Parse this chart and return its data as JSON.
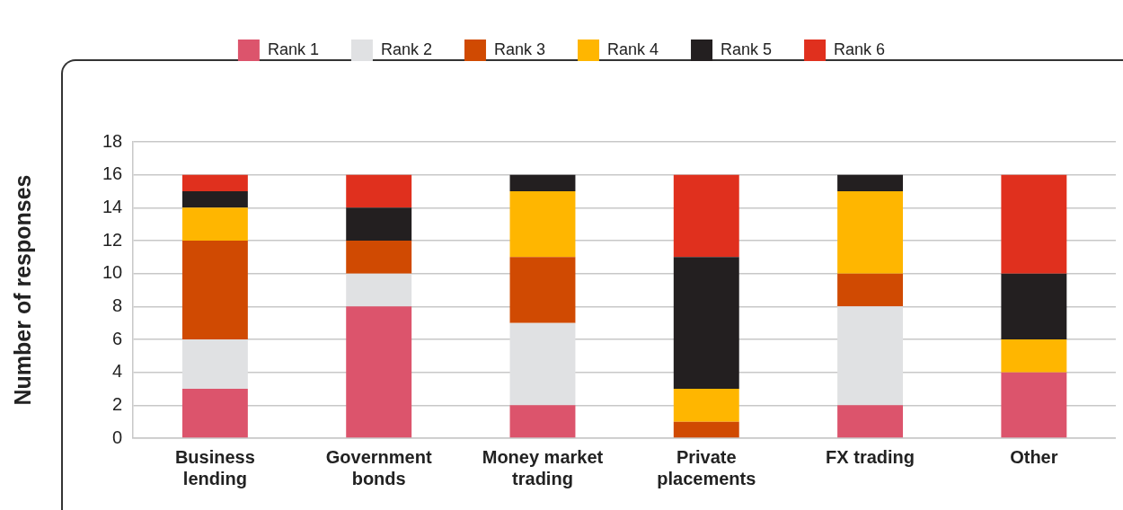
{
  "chart_data": {
    "type": "bar",
    "stacked": true,
    "ylabel": "Number of responses",
    "categories": [
      "Business lending",
      "Government bonds",
      "Money market trading",
      "Private placements",
      "FX trading",
      "Other"
    ],
    "series": [
      {
        "name": "Rank 1",
        "color": "#dc546c",
        "values": [
          3,
          8,
          2,
          0,
          2,
          4
        ]
      },
      {
        "name": "Rank 2",
        "color": "#e0e1e3",
        "values": [
          3,
          2,
          5,
          0,
          6,
          0
        ]
      },
      {
        "name": "Rank 3",
        "color": "#d04a02",
        "values": [
          6,
          2,
          4,
          1,
          2,
          0
        ]
      },
      {
        "name": "Rank 4",
        "color": "#ffb600",
        "values": [
          2,
          0,
          4,
          2,
          5,
          2
        ]
      },
      {
        "name": "Rank 5",
        "color": "#231f20",
        "values": [
          1,
          2,
          1,
          8,
          1,
          4
        ]
      },
      {
        "name": "Rank 6",
        "color": "#e0301e",
        "values": [
          1,
          2,
          0,
          5,
          0,
          6
        ]
      }
    ],
    "ylim": [
      0,
      18
    ],
    "yticks": [
      0,
      2,
      4,
      6,
      8,
      10,
      12,
      14,
      16,
      18
    ],
    "grid": "y",
    "legend": "top"
  }
}
